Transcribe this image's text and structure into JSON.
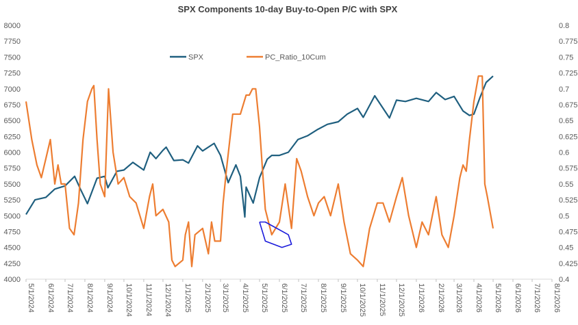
{
  "chart_data": {
    "type": "line",
    "title": "SPX Components 10-day Buy-to-Open P/C with SPX",
    "x_ticks": [
      "5/1/2024",
      "6/1/2024",
      "7/1/2024",
      "8/1/2024",
      "9/1/2024",
      "10/1/2024",
      "11/1/2024",
      "12/1/2024",
      "1/1/2025",
      "2/1/2025",
      "3/1/2025",
      "4/1/2025",
      "5/1/2025",
      "6/1/2025",
      "7/1/2025",
      "8/1/2025",
      "9/1/2025",
      "10/1/2025",
      "11/1/2025",
      "12/1/2025",
      "1/1/2026",
      "2/1/2026",
      "3/1/2026",
      "4/1/2026",
      "5/1/2026",
      "6/1/2026",
      "7/1/2026",
      "8/1/2026"
    ],
    "xlim": [
      "5/1/2024",
      "8/1/2026"
    ],
    "y_left": {
      "ylim": [
        4000,
        8000
      ],
      "ticks": [
        "4000",
        "4250",
        "4500",
        "4750",
        "5000",
        "5250",
        "5500",
        "5750",
        "6000",
        "6250",
        "6500",
        "6750",
        "7000",
        "7250",
        "7500",
        "7750",
        "8000"
      ]
    },
    "y_right": {
      "ylim": [
        0.4,
        0.8
      ],
      "ticks": [
        "0.4",
        "0.425",
        "0.45",
        "0.475",
        "0.5",
        "0.525",
        "0.55",
        "0.575",
        "0.6",
        "0.625",
        "0.65",
        "0.675",
        "0.7",
        "0.725",
        "0.75",
        "0.775",
        "0.8"
      ]
    },
    "legend_position": "top",
    "grid": false,
    "series": [
      {
        "name": "SPX",
        "axis": "left",
        "color": "#1f5f7f",
        "points": [
          [
            "5/1/2024",
            5020
          ],
          [
            "5/15/2024",
            5250
          ],
          [
            "6/1/2024",
            5290
          ],
          [
            "6/15/2024",
            5420
          ],
          [
            "7/1/2024",
            5470
          ],
          [
            "7/16/2024",
            5620
          ],
          [
            "7/25/2024",
            5420
          ],
          [
            "8/5/2024",
            5190
          ],
          [
            "8/20/2024",
            5590
          ],
          [
            "9/1/2024",
            5620
          ],
          [
            "9/6/2024",
            5440
          ],
          [
            "9/20/2024",
            5700
          ],
          [
            "10/1/2024",
            5720
          ],
          [
            "10/15/2024",
            5840
          ],
          [
            "11/1/2024",
            5720
          ],
          [
            "11/11/2024",
            6000
          ],
          [
            "11/20/2024",
            5900
          ],
          [
            "12/1/2024",
            6030
          ],
          [
            "12/6/2024",
            6080
          ],
          [
            "12/18/2024",
            5870
          ],
          [
            "1/1/2025",
            5880
          ],
          [
            "1/10/2025",
            5830
          ],
          [
            "1/24/2025",
            6100
          ],
          [
            "2/1/2025",
            6020
          ],
          [
            "2/19/2025",
            6140
          ],
          [
            "3/1/2025",
            5950
          ],
          [
            "3/13/2025",
            5520
          ],
          [
            "3/25/2025",
            5800
          ],
          [
            "4/1/2025",
            5620
          ],
          [
            "4/8/2025",
            4980
          ],
          [
            "4/10/2025",
            5450
          ],
          [
            "4/21/2025",
            5200
          ],
          [
            "5/1/2025",
            5600
          ],
          [
            "5/13/2025",
            5890
          ],
          [
            "5/20/2025",
            5950
          ],
          [
            "6/1/2025",
            5950
          ],
          [
            "6/15/2025",
            6000
          ],
          [
            "6/30/2025",
            6200
          ],
          [
            "7/15/2025",
            6260
          ],
          [
            "7/31/2025",
            6360
          ],
          [
            "8/15/2025",
            6440
          ],
          [
            "9/1/2025",
            6480
          ],
          [
            "9/15/2025",
            6600
          ],
          [
            "10/1/2025",
            6690
          ],
          [
            "10/10/2025",
            6550
          ],
          [
            "10/28/2025",
            6890
          ],
          [
            "11/20/2025",
            6540
          ],
          [
            "12/1/2025",
            6820
          ],
          [
            "12/15/2025",
            6800
          ],
          [
            "1/1/2026",
            6850
          ],
          [
            "1/20/2026",
            6800
          ],
          [
            "2/1/2026",
            6940
          ],
          [
            "2/15/2026",
            6830
          ],
          [
            "3/1/2026",
            6880
          ],
          [
            "3/15/2026",
            6650
          ],
          [
            "3/25/2026",
            6580
          ],
          [
            "4/1/2026",
            6600
          ],
          [
            "4/10/2026",
            6850
          ],
          [
            "4/20/2026",
            7100
          ],
          [
            "5/1/2026",
            7200
          ]
        ]
      },
      {
        "name": "PC_Ratio_10Cum",
        "axis": "right",
        "color": "#ed7d31",
        "points": [
          [
            "5/1/2024",
            0.68
          ],
          [
            "5/10/2024",
            0.62
          ],
          [
            "5/18/2024",
            0.58
          ],
          [
            "5/25/2024",
            0.56
          ],
          [
            "6/1/2024",
            0.59
          ],
          [
            "6/8/2024",
            0.62
          ],
          [
            "6/15/2024",
            0.55
          ],
          [
            "6/20/2024",
            0.58
          ],
          [
            "6/25/2024",
            0.55
          ],
          [
            "7/1/2024",
            0.55
          ],
          [
            "7/8/2024",
            0.48
          ],
          [
            "7/15/2024",
            0.47
          ],
          [
            "7/22/2024",
            0.52
          ],
          [
            "7/29/2024",
            0.62
          ],
          [
            "8/5/2024",
            0.68
          ],
          [
            "8/12/2024",
            0.7
          ],
          [
            "8/15/2024",
            0.705
          ],
          [
            "8/20/2024",
            0.62
          ],
          [
            "8/25/2024",
            0.55
          ],
          [
            "9/1/2024",
            0.53
          ],
          [
            "9/7/2024",
            0.7
          ],
          [
            "9/14/2024",
            0.6
          ],
          [
            "9/22/2024",
            0.55
          ],
          [
            "10/1/2024",
            0.56
          ],
          [
            "10/10/2024",
            0.53
          ],
          [
            "10/20/2024",
            0.52
          ],
          [
            "11/1/2024",
            0.48
          ],
          [
            "11/10/2024",
            0.53
          ],
          [
            "11/15/2024",
            0.55
          ],
          [
            "11/20/2024",
            0.5
          ],
          [
            "12/1/2024",
            0.51
          ],
          [
            "12/10/2024",
            0.49
          ],
          [
            "12/15/2024",
            0.43
          ],
          [
            "12/20/2024",
            0.42
          ],
          [
            "1/1/2025",
            0.43
          ],
          [
            "1/5/2025",
            0.47
          ],
          [
            "1/10/2025",
            0.49
          ],
          [
            "1/15/2025",
            0.42
          ],
          [
            "1/20/2025",
            0.47
          ],
          [
            "2/1/2025",
            0.48
          ],
          [
            "2/10/2025",
            0.44
          ],
          [
            "2/15/2025",
            0.49
          ],
          [
            "2/20/2025",
            0.46
          ],
          [
            "3/1/2025",
            0.46
          ],
          [
            "3/5/2025",
            0.52
          ],
          [
            "3/10/2025",
            0.57
          ],
          [
            "3/20/2025",
            0.66
          ],
          [
            "4/1/2025",
            0.66
          ],
          [
            "4/10/2025",
            0.69
          ],
          [
            "4/15/2025",
            0.69
          ],
          [
            "4/20/2025",
            0.7
          ],
          [
            "4/25/2025",
            0.7
          ],
          [
            "5/1/2025",
            0.64
          ],
          [
            "5/5/2025",
            0.58
          ],
          [
            "5/10/2025",
            0.51
          ],
          [
            "5/20/2025",
            0.47
          ],
          [
            "6/1/2025",
            0.49
          ],
          [
            "6/10/2025",
            0.55
          ],
          [
            "6/20/2025",
            0.48
          ],
          [
            "6/28/2025",
            0.59
          ],
          [
            "7/5/2025",
            0.57
          ],
          [
            "7/15/2025",
            0.53
          ],
          [
            "7/25/2025",
            0.5
          ],
          [
            "8/1/2025",
            0.52
          ],
          [
            "8/10/2025",
            0.53
          ],
          [
            "8/20/2025",
            0.5
          ],
          [
            "9/1/2025",
            0.55
          ],
          [
            "9/10/2025",
            0.49
          ],
          [
            "9/20/2025",
            0.44
          ],
          [
            "10/1/2025",
            0.43
          ],
          [
            "10/10/2025",
            0.42
          ],
          [
            "10/20/2025",
            0.48
          ],
          [
            "11/1/2025",
            0.52
          ],
          [
            "11/10/2025",
            0.52
          ],
          [
            "11/20/2025",
            0.49
          ],
          [
            "12/1/2025",
            0.53
          ],
          [
            "12/10/2025",
            0.56
          ],
          [
            "12/20/2025",
            0.5
          ],
          [
            "1/1/2026",
            0.45
          ],
          [
            "1/10/2026",
            0.49
          ],
          [
            "1/20/2026",
            0.47
          ],
          [
            "2/1/2026",
            0.53
          ],
          [
            "2/10/2026",
            0.47
          ],
          [
            "2/20/2026",
            0.45
          ],
          [
            "3/1/2026",
            0.5
          ],
          [
            "3/10/2026",
            0.56
          ],
          [
            "3/15/2026",
            0.58
          ],
          [
            "3/20/2026",
            0.57
          ],
          [
            "3/25/2026",
            0.62
          ],
          [
            "4/1/2026",
            0.68
          ],
          [
            "4/8/2026",
            0.72
          ],
          [
            "4/14/2026",
            0.72
          ],
          [
            "4/18/2026",
            0.55
          ],
          [
            "4/22/2026",
            0.53
          ],
          [
            "5/1/2026",
            0.48
          ]
        ]
      }
    ],
    "annotation": {
      "type": "freehand-loop",
      "color": "#1a1adb",
      "points": [
        [
          "5/1/2025",
          0.49
        ],
        [
          "5/10/2025",
          0.49
        ],
        [
          "6/15/2025",
          0.47
        ],
        [
          "6/20/2025",
          0.455
        ],
        [
          "6/5/2025",
          0.45
        ],
        [
          "5/10/2025",
          0.46
        ],
        [
          "5/1/2025",
          0.49
        ]
      ]
    }
  }
}
